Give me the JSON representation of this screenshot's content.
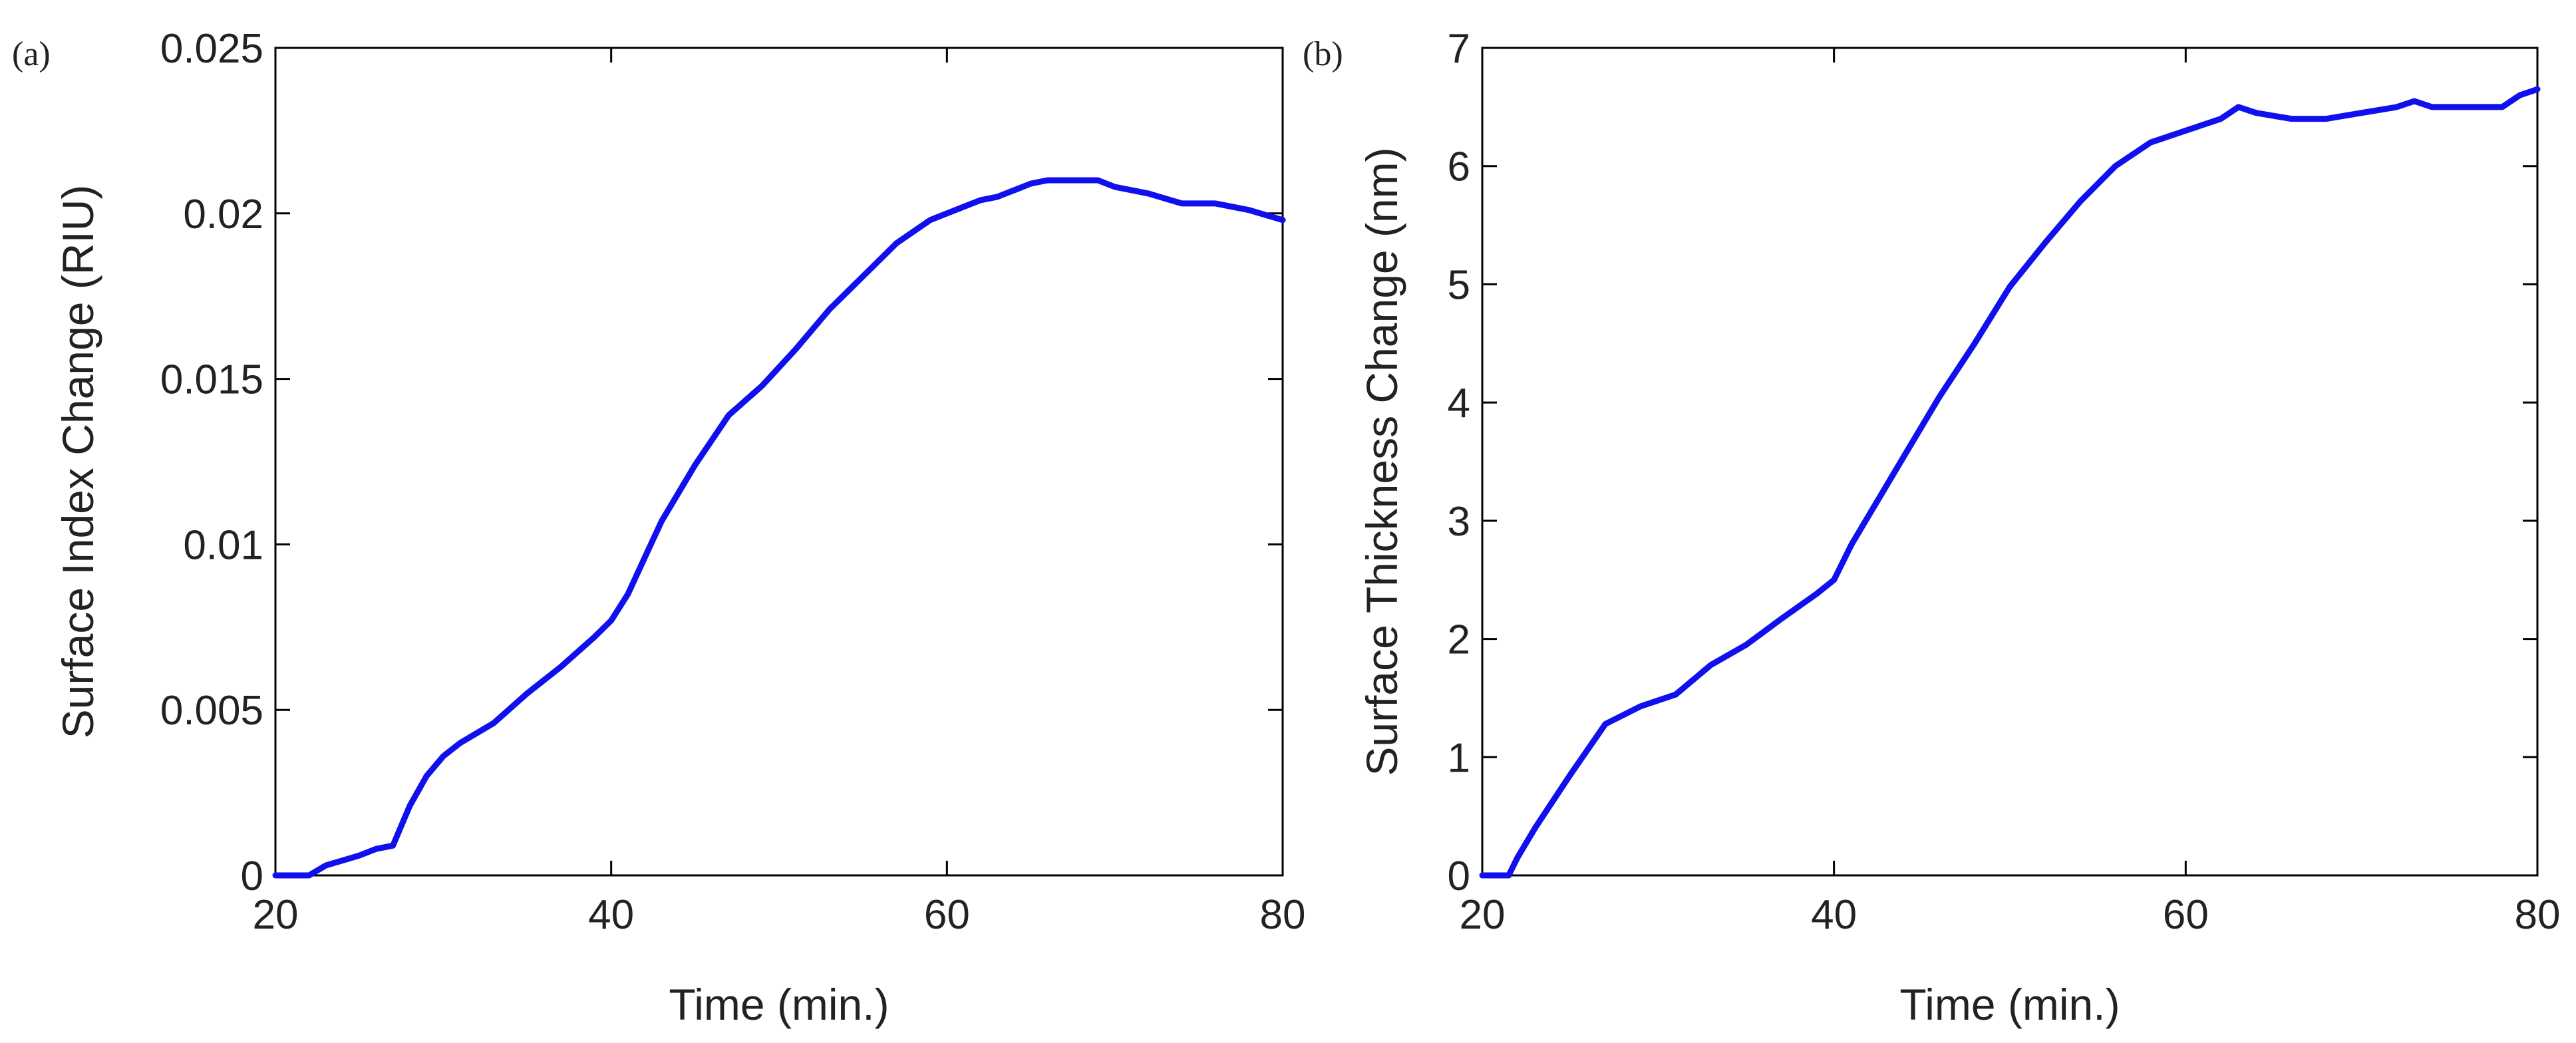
{
  "colors": {
    "line": "#1010ee",
    "axis": "#000000",
    "text": "#222222",
    "background": "#ffffff"
  },
  "chart_data": [
    {
      "type": "line",
      "panel_label": "(a)",
      "title": "",
      "xlabel": "Time (min.)",
      "ylabel": "Surface Index Change (RIU)",
      "xlim": [
        20,
        80
      ],
      "ylim": [
        0,
        0.025
      ],
      "xticks": [
        20,
        40,
        60,
        80
      ],
      "xtick_labels": [
        "20",
        "40",
        "60",
        "80"
      ],
      "yticks": [
        0,
        0.005,
        0.01,
        0.015,
        0.02,
        0.025
      ],
      "ytick_labels": [
        "0",
        "0.005",
        "0.01",
        "0.015",
        "0.02",
        "0.025"
      ],
      "grid": false,
      "series": [
        {
          "name": "Surface Index Change",
          "x": [
            20,
            22,
            23,
            25,
            26,
            27,
            28,
            29,
            30,
            31,
            33,
            35,
            37,
            39,
            40,
            41,
            42,
            43,
            45,
            47,
            49,
            51,
            53,
            55,
            57,
            59,
            61,
            62,
            63,
            64,
            65,
            66,
            67,
            68,
            69,
            70,
            72,
            74,
            76,
            78,
            80
          ],
          "y": [
            0,
            0,
            0.0003,
            0.0006,
            0.0008,
            0.0009,
            0.0021,
            0.003,
            0.0036,
            0.004,
            0.0046,
            0.0055,
            0.0063,
            0.0072,
            0.0077,
            0.0085,
            0.0096,
            0.0107,
            0.0124,
            0.0139,
            0.0148,
            0.0159,
            0.0171,
            0.0181,
            0.0191,
            0.0198,
            0.0202,
            0.0204,
            0.0205,
            0.0207,
            0.0209,
            0.021,
            0.021,
            0.021,
            0.021,
            0.0208,
            0.0206,
            0.0203,
            0.0203,
            0.0201,
            0.0198
          ]
        }
      ]
    },
    {
      "type": "line",
      "panel_label": "(b)",
      "title": "",
      "xlabel": "Time (min.)",
      "ylabel": "Surface Thickness Change (nm)",
      "xlim": [
        20,
        80
      ],
      "ylim": [
        0,
        7
      ],
      "xticks": [
        20,
        40,
        60,
        80
      ],
      "xtick_labels": [
        "20",
        "40",
        "60",
        "80"
      ],
      "yticks": [
        0,
        1,
        2,
        3,
        4,
        5,
        6,
        7
      ],
      "ytick_labels": [
        "0",
        "1",
        "2",
        "3",
        "4",
        "5",
        "6",
        "7"
      ],
      "grid": false,
      "series": [
        {
          "name": "Surface Thickness Change",
          "x": [
            20,
            21.5,
            22,
            23,
            25,
            27,
            29,
            31,
            33,
            35,
            37,
            39,
            40,
            41,
            42,
            44,
            46,
            48,
            50,
            52,
            54,
            56,
            58,
            60,
            62,
            63,
            64,
            66,
            68,
            70,
            72,
            73,
            74,
            76,
            78,
            79,
            80
          ],
          "y": [
            0,
            0,
            0.15,
            0.4,
            0.85,
            1.28,
            1.43,
            1.53,
            1.78,
            1.95,
            2.17,
            2.38,
            2.5,
            2.8,
            3.05,
            3.55,
            4.05,
            4.5,
            4.98,
            5.35,
            5.7,
            6.0,
            6.2,
            6.3,
            6.4,
            6.5,
            6.45,
            6.4,
            6.4,
            6.45,
            6.5,
            6.55,
            6.5,
            6.5,
            6.5,
            6.6,
            6.65
          ]
        }
      ]
    }
  ]
}
